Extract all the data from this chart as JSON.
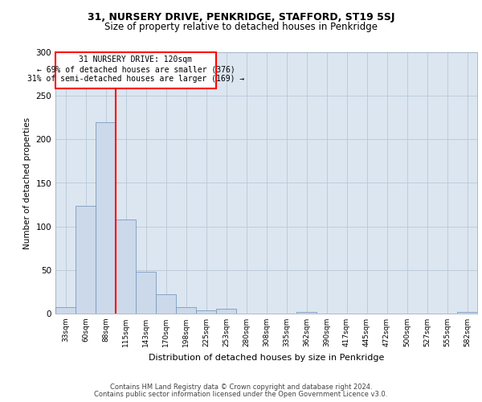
{
  "title1": "31, NURSERY DRIVE, PENKRIDGE, STAFFORD, ST19 5SJ",
  "title2": "Size of property relative to detached houses in Penkridge",
  "xlabel": "Distribution of detached houses by size in Penkridge",
  "ylabel": "Number of detached properties",
  "categories": [
    "33sqm",
    "60sqm",
    "88sqm",
    "115sqm",
    "143sqm",
    "170sqm",
    "198sqm",
    "225sqm",
    "253sqm",
    "280sqm",
    "308sqm",
    "335sqm",
    "362sqm",
    "390sqm",
    "417sqm",
    "445sqm",
    "472sqm",
    "500sqm",
    "527sqm",
    "555sqm",
    "582sqm"
  ],
  "values": [
    7,
    124,
    220,
    108,
    48,
    22,
    7,
    4,
    6,
    0,
    0,
    0,
    2,
    0,
    0,
    0,
    0,
    0,
    0,
    0,
    2
  ],
  "bar_color": "#ccd9ea",
  "bar_edge_color": "#7a9abf",
  "annotation_line1": "31 NURSERY DRIVE: 120sqm",
  "annotation_line2": "← 69% of detached houses are smaller (376)",
  "annotation_line3": "31% of semi-detached houses are larger (169) →",
  "ylim": [
    0,
    300
  ],
  "yticks": [
    0,
    50,
    100,
    150,
    200,
    250,
    300
  ],
  "plot_bg_color": "#dce6f0",
  "footer1": "Contains HM Land Registry data © Crown copyright and database right 2024.",
  "footer2": "Contains public sector information licensed under the Open Government Licence v3.0."
}
